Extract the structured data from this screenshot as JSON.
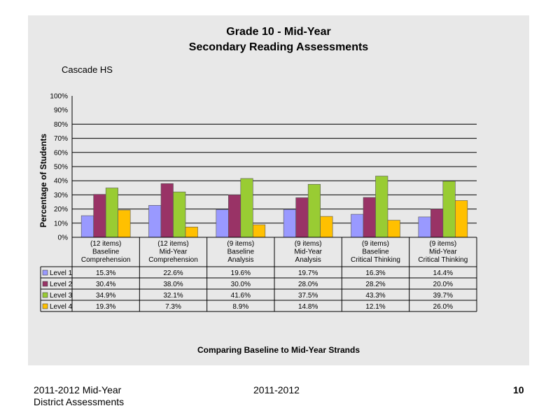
{
  "slide": {
    "footer_left_line1": "2011-2012  Mid-Year",
    "footer_left_line2": "District Assessments",
    "footer_center": "2011-2012",
    "page_number": "10"
  },
  "chart_data": {
    "type": "bar",
    "title": "Grade 10 - Mid-Year",
    "subtitle": "Secondary Reading Assessments",
    "annotation": "Cascade HS",
    "ylabel": "Percentage of Students",
    "xlabel": "Comparing Baseline to Mid-Year Strands",
    "ylim": [
      0,
      100
    ],
    "y_ticks": [
      "0%",
      "10%",
      "20%",
      "30%",
      "40%",
      "50%",
      "60%",
      "70%",
      "80%",
      "90%",
      "100%"
    ],
    "categories": [
      [
        "(12 items)",
        "Baseline",
        "Comprehension"
      ],
      [
        "(12 items)",
        "Mid-Year",
        "Comprehension"
      ],
      [
        "(9 items)",
        "Baseline",
        "Analysis"
      ],
      [
        "(9 items)",
        "Mid-Year",
        "Analysis"
      ],
      [
        "(9 items)",
        "Baseline",
        "Critical Thinking"
      ],
      [
        "(9 items)",
        "Mid-Year",
        "Critical Thinking"
      ]
    ],
    "series": [
      {
        "name": "Level 1",
        "color": "#9999ff",
        "values": [
          15.3,
          22.6,
          19.6,
          19.7,
          16.3,
          14.4
        ],
        "labels": [
          "15.3%",
          "22.6%",
          "19.6%",
          "19.7%",
          "16.3%",
          "14.4%"
        ]
      },
      {
        "name": "Level 2",
        "color": "#993366",
        "values": [
          30.4,
          38.0,
          30.0,
          28.0,
          28.2,
          20.0
        ],
        "labels": [
          "30.4%",
          "38.0%",
          "30.0%",
          "28.0%",
          "28.2%",
          "20.0%"
        ]
      },
      {
        "name": "Level 3",
        "color": "#99cc33",
        "values": [
          34.9,
          32.1,
          41.6,
          37.5,
          43.3,
          39.7
        ],
        "labels": [
          "34.9%",
          "32.1%",
          "41.6%",
          "37.5%",
          "43.3%",
          "39.7%"
        ]
      },
      {
        "name": "Level 4",
        "color": "#ffc000",
        "values": [
          19.3,
          7.3,
          8.9,
          14.8,
          12.1,
          26.0
        ],
        "labels": [
          "19.3%",
          "7.3%",
          "8.9%",
          "14.8%",
          "12.1%",
          "26.0%"
        ]
      }
    ],
    "gridlines": true,
    "legend": "data-table"
  }
}
